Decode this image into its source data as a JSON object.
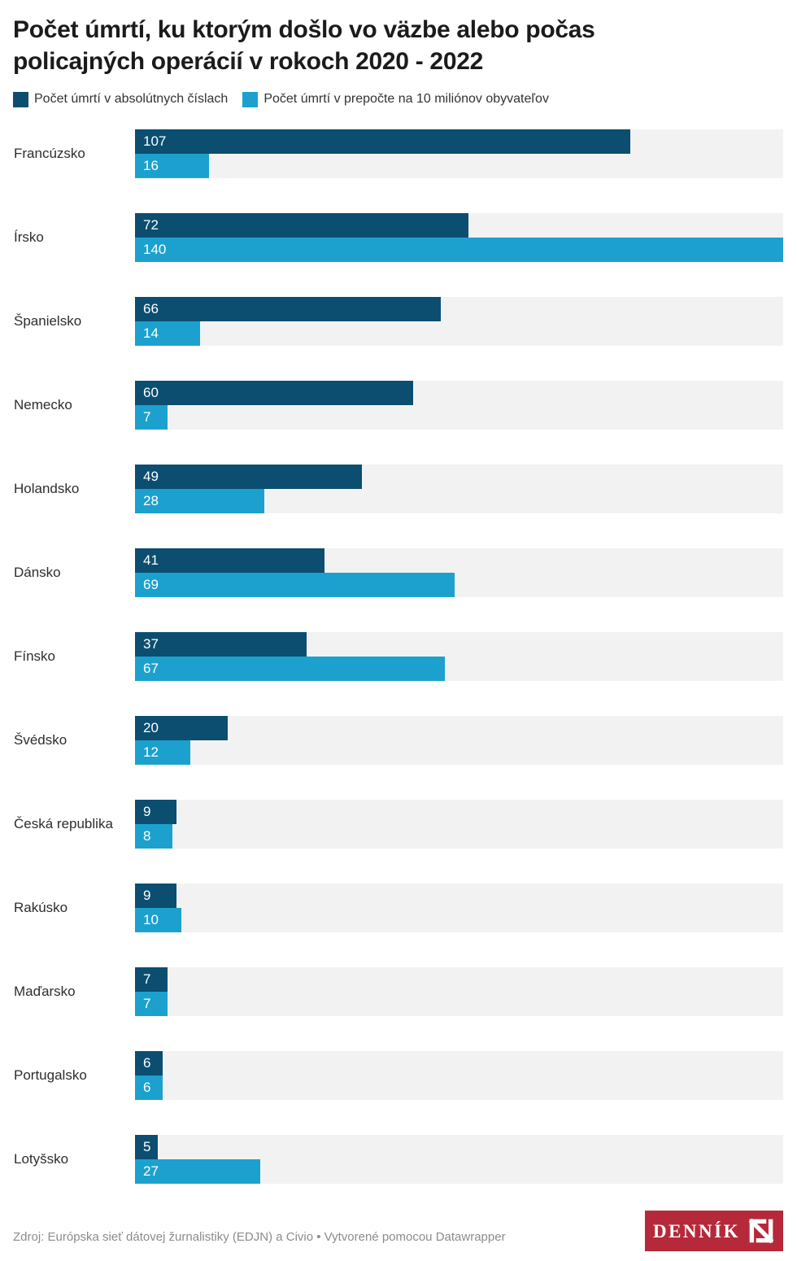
{
  "title_lines": [
    "Počet úmrtí, ku ktorým došlo vo väzbe alebo počas",
    "policajných operácií v rokoch 2020 - 2022"
  ],
  "legend": {
    "items": [
      {
        "label": "Počet úmrtí v absolútnych číslach",
        "color": "#0b4e70"
      },
      {
        "label": "Počet úmrtí v prepočte na 10 miliónov obyvateľov",
        "color": "#1ca1ce"
      }
    ]
  },
  "chart_data": {
    "type": "bar",
    "orientation": "horizontal",
    "title": "Počet úmrtí, ku ktorým došlo vo väzbe alebo počas policajných operácií v rokoch 2020 - 2022",
    "categories": [
      "Francúzsko",
      "Írsko",
      "Španielsko",
      "Nemecko",
      "Holandsko",
      "Dánsko",
      "Fínsko",
      "Švédsko",
      "Česká republika",
      "Rakúsko",
      "Maďarsko",
      "Portugalsko",
      "Lotyšsko"
    ],
    "series": [
      {
        "name": "Počet úmrtí v absolútnych číslach",
        "color": "#0b4e70",
        "values": [
          107,
          72,
          66,
          60,
          49,
          41,
          37,
          20,
          9,
          9,
          7,
          6,
          5
        ]
      },
      {
        "name": "Počet úmrtí v prepočte na 10 miliónov obyvateľov",
        "color": "#1ca1ce",
        "values": [
          16,
          140,
          14,
          7,
          28,
          69,
          67,
          12,
          8,
          10,
          7,
          6,
          27
        ]
      }
    ],
    "xmax": 140,
    "track_color": "#f2f2f2",
    "value_labels": "inside-left-white",
    "grid": false,
    "legend_position": "top"
  },
  "footer": {
    "source": "Zdroj: Európska sieť dátovej žurnalistiky (EDJN) a Civio • Vytvorené pomocou Datawrapper"
  },
  "logo": {
    "text": "DENNÍK",
    "background": "#b5293a",
    "icon": "dennik-n-icon"
  }
}
